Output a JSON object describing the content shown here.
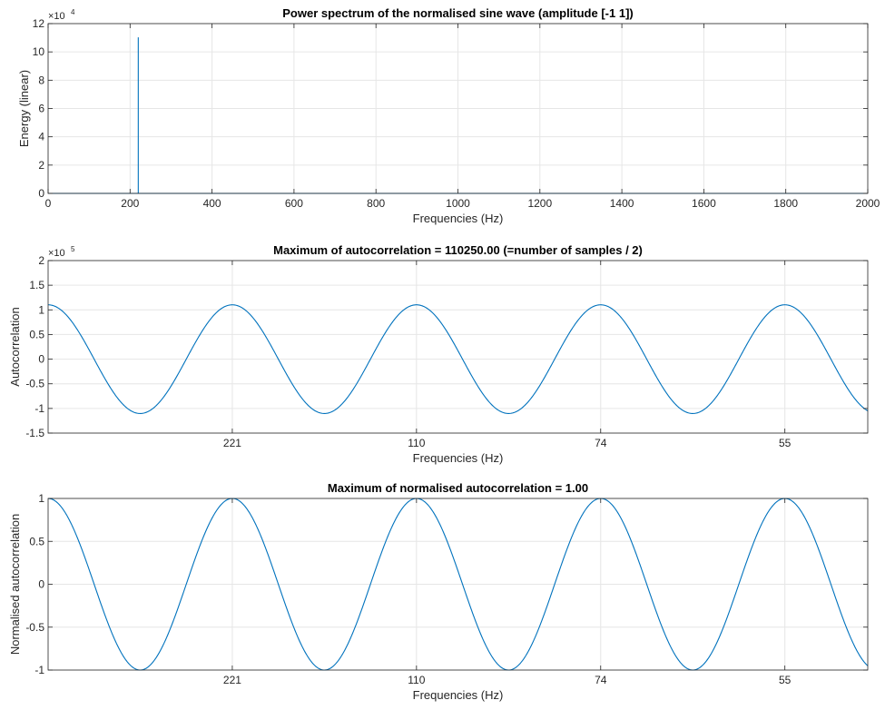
{
  "chart_data": [
    {
      "type": "line",
      "title": "Power spectrum of the normalised sine wave (amplitude [-1 1])",
      "xlabel": "Frequencies (Hz)",
      "ylabel": "Energy (linear)",
      "exponent_label": "×10",
      "exponent": "4",
      "xlim": [
        0,
        2000
      ],
      "ylim": [
        0,
        12
      ],
      "xticks": [
        0,
        200,
        400,
        600,
        800,
        1000,
        1200,
        1400,
        1600,
        1800,
        2000
      ],
      "xtick_labels": [
        "0",
        "200",
        "400",
        "600",
        "800",
        "1000",
        "1200",
        "1400",
        "1600",
        "1800",
        "2000"
      ],
      "yticks": [
        0,
        2,
        4,
        6,
        8,
        10,
        12
      ],
      "ytick_labels": [
        "0",
        "2",
        "4",
        "6",
        "8",
        "10",
        "12"
      ],
      "grid": true,
      "color": "#0072BD",
      "series": [
        {
          "x": [
            0,
            219,
            220,
            220,
            220,
            221,
            2000
          ],
          "y": [
            0,
            0,
            0,
            11.03,
            0,
            0,
            0
          ]
        }
      ]
    },
    {
      "type": "line",
      "title": "Maximum of autocorrelation = 110250.00 (=number of samples / 2)",
      "xlabel": "Frequencies (Hz)",
      "ylabel": "Autocorrelation",
      "exponent_label": "×10",
      "exponent": "5",
      "xlim": [
        0,
        4.45
      ],
      "ylim": [
        -1.5,
        2
      ],
      "xticks": [
        1,
        2,
        3,
        4
      ],
      "xtick_labels": [
        "221",
        "110",
        "74",
        "55"
      ],
      "yticks": [
        -1.5,
        -1,
        -0.5,
        0,
        0.5,
        1,
        1.5,
        2
      ],
      "ytick_labels": [
        "-1.5",
        "-1",
        "-0.5",
        "0",
        "0.5",
        "1",
        "1.5",
        "2"
      ],
      "grid": true,
      "color": "#0072BD",
      "curve": {
        "function": "cos",
        "amplitude": 1.1025,
        "period": 1,
        "x_range": [
          0,
          4.45
        ]
      }
    },
    {
      "type": "line",
      "title": "Maximum of normalised autocorrelation = 1.00",
      "xlabel": "Frequencies (Hz)",
      "ylabel": "Normalised autocorrelation",
      "xlim": [
        0,
        4.45
      ],
      "ylim": [
        -1,
        1
      ],
      "xticks": [
        1,
        2,
        3,
        4
      ],
      "xtick_labels": [
        "221",
        "110",
        "74",
        "55"
      ],
      "yticks": [
        -1,
        -0.5,
        0,
        0.5,
        1
      ],
      "ytick_labels": [
        "-1",
        "-0.5",
        "0",
        "0.5",
        "1"
      ],
      "grid": true,
      "color": "#0072BD",
      "curve": {
        "function": "cos",
        "amplitude": 1.0,
        "period": 1,
        "x_range": [
          0,
          4.45
        ]
      }
    }
  ]
}
